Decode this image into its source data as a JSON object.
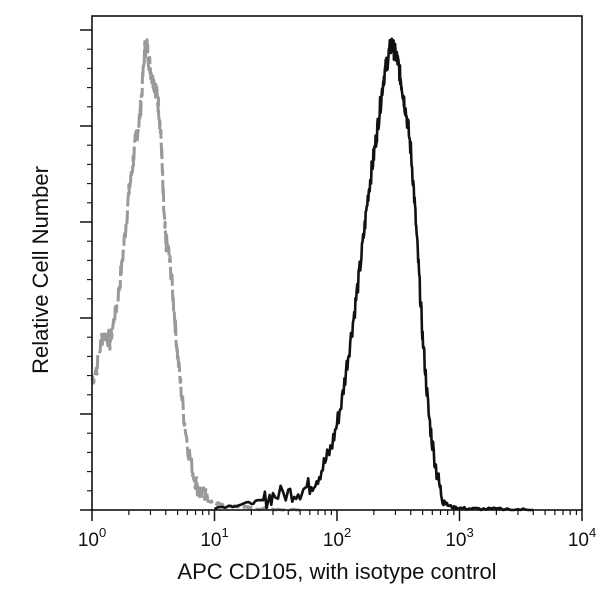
{
  "chart_data": {
    "type": "line",
    "title": "",
    "xlabel": "APC CD105, with isotype control",
    "ylabel": "Relative Cell Number",
    "x_scale": "log",
    "xlim": [
      1,
      10000
    ],
    "ylim": [
      0,
      100
    ],
    "grid": false,
    "legend": "none",
    "x_ticks": [
      {
        "base": "10",
        "exp": "0",
        "value": 1
      },
      {
        "base": "10",
        "exp": "1",
        "value": 10
      },
      {
        "base": "10",
        "exp": "2",
        "value": 100
      },
      {
        "base": "10",
        "exp": "3",
        "value": 1000
      },
      {
        "base": "10",
        "exp": "4",
        "value": 10000
      }
    ],
    "y_ticks": [
      0,
      20,
      40,
      60,
      80,
      100
    ],
    "series": [
      {
        "color": "#999999",
        "dash": "dashed",
        "x": [
          1.0,
          1.1,
          1.2,
          1.3,
          1.4,
          1.5,
          1.6,
          1.7,
          1.8,
          1.9,
          2.0,
          2.1,
          2.2,
          2.3,
          2.4,
          2.5,
          2.6,
          2.7,
          2.8,
          2.9,
          3.0,
          3.1,
          3.2,
          3.3,
          3.4,
          3.5,
          3.6,
          3.7,
          3.8,
          3.9,
          4.0,
          4.2,
          4.4,
          4.6,
          4.8,
          5.0,
          5.3,
          5.6,
          6.0,
          6.5,
          7.0,
          7.5,
          8.0,
          9.0,
          10,
          11,
          12,
          14,
          16,
          18,
          20,
          25,
          30,
          40,
          50
        ],
        "y": [
          27,
          30,
          36,
          37,
          35,
          39,
          43,
          48,
          54,
          60,
          66,
          70,
          74,
          78,
          80,
          84,
          90,
          96,
          97,
          94,
          92,
          90,
          89,
          88,
          86,
          84,
          80,
          75,
          66,
          60,
          56,
          54,
          50,
          44,
          38,
          32,
          26,
          20,
          14,
          9,
          6,
          4,
          3,
          2,
          1.5,
          1.2,
          1,
          0.8,
          0.6,
          0.5,
          0.4,
          0.3,
          0.2,
          0.1,
          0
        ]
      },
      {
        "color": "#111111",
        "dash": "solid",
        "x": [
          10,
          15,
          20,
          25,
          30,
          40,
          50,
          60,
          70,
          80,
          90,
          100,
          110,
          120,
          130,
          140,
          150,
          160,
          170,
          180,
          190,
          200,
          210,
          220,
          230,
          240,
          250,
          260,
          270,
          280,
          290,
          300,
          310,
          320,
          330,
          340,
          350,
          360,
          380,
          400,
          420,
          440,
          460,
          480,
          500,
          530,
          560,
          600,
          650,
          700,
          750,
          800,
          900,
          1000,
          1200,
          1500,
          2000,
          3000,
          4000
        ],
        "y": [
          0.5,
          1,
          1.5,
          2,
          3,
          3.5,
          4,
          5,
          7,
          10,
          13,
          18,
          23,
          30,
          36,
          42,
          48,
          54,
          60,
          66,
          70,
          74,
          78,
          82,
          86,
          90,
          92,
          94,
          96,
          97,
          96,
          95,
          94,
          92,
          90,
          88,
          86,
          84,
          80,
          75,
          68,
          60,
          52,
          44,
          36,
          28,
          20,
          14,
          8,
          4,
          2,
          1,
          0.5,
          0.4,
          0.3,
          0.2,
          0.2,
          0.1,
          0
        ]
      }
    ]
  }
}
